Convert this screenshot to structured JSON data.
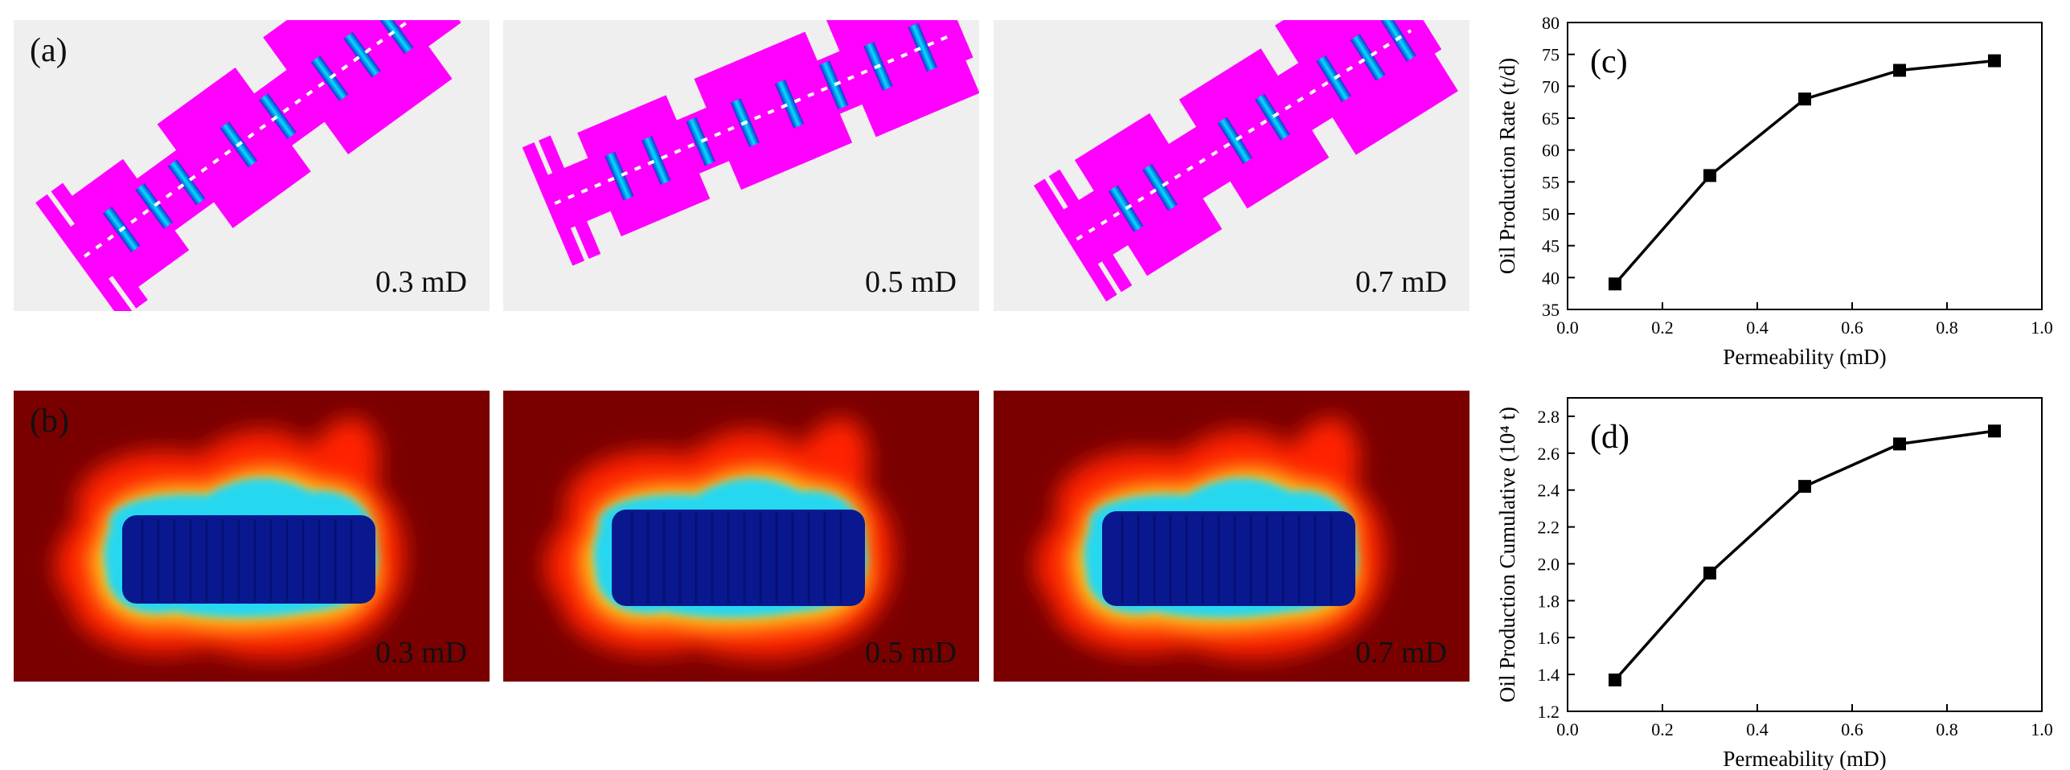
{
  "panel_labels": {
    "a": "(a)",
    "b": "(b)",
    "c": "(c)",
    "d": "(d)"
  },
  "row_a": {
    "captions": [
      "0.3 mD",
      "0.5 mD",
      "0.7 mD"
    ]
  },
  "row_b": {
    "captions": [
      "0.3 mD",
      "0.5 mD",
      "0.7 mD"
    ]
  },
  "colors": {
    "line": "#000000",
    "magenta": "#ff00ff",
    "cyan": "#00d5ff",
    "deep_blue": "#00108a",
    "dark_red": "#7a0000"
  },
  "chart_data": [
    {
      "type": "line",
      "id": "c",
      "x": [
        0.1,
        0.3,
        0.5,
        0.7,
        0.9
      ],
      "series": [
        {
          "values": [
            39,
            56,
            68,
            72.5,
            74
          ]
        }
      ],
      "xlabel": "Permeability (mD)",
      "ylabel": "Oil Production Rate (t/d)",
      "xlim": [
        0.0,
        1.0
      ],
      "ylim": [
        35,
        80
      ],
      "xticks": [
        "0.0",
        "0.2",
        "0.4",
        "0.6",
        "0.8",
        "1.0"
      ],
      "yticks": [
        "35",
        "40",
        "45",
        "50",
        "55",
        "60",
        "65",
        "70",
        "75",
        "80"
      ],
      "marker": "square",
      "grid": false
    },
    {
      "type": "line",
      "id": "d",
      "x": [
        0.1,
        0.3,
        0.5,
        0.7,
        0.9
      ],
      "series": [
        {
          "values": [
            1.37,
            1.95,
            2.42,
            2.65,
            2.72
          ]
        }
      ],
      "xlabel": "Permeability (mD)",
      "ylabel": "Oil Production Cumulative (10⁴ t)",
      "xlim": [
        0.0,
        1.0
      ],
      "ylim": [
        1.2,
        2.9
      ],
      "xticks": [
        "0.0",
        "0.2",
        "0.4",
        "0.6",
        "0.8",
        "1.0"
      ],
      "yticks": [
        "1.2",
        "1.4",
        "1.6",
        "1.8",
        "2.0",
        "2.2",
        "2.4",
        "2.6",
        "2.8"
      ],
      "marker": "square",
      "grid": false
    }
  ]
}
